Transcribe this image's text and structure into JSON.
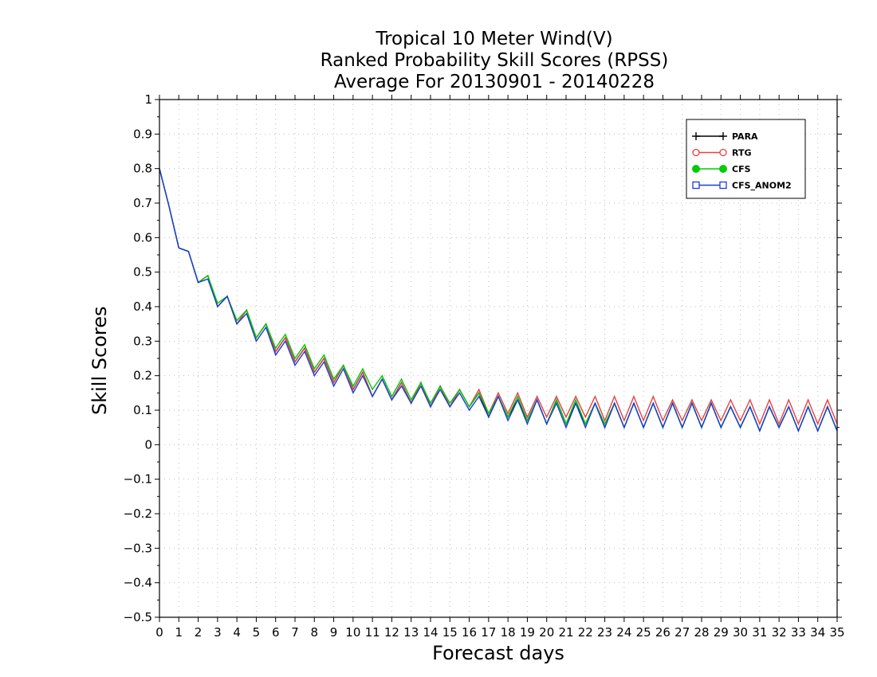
{
  "chart_data": {
    "type": "line",
    "title_lines": [
      "Tropical 10 Meter Wind(V)",
      "Ranked Probability Skill Scores (RPSS)",
      "Average For 20130901 - 20140228"
    ],
    "xlabel": "Forecast days",
    "ylabel": "Skill Scores",
    "xlim": [
      0,
      35
    ],
    "ylim": [
      -0.5,
      1
    ],
    "x_ticks": [
      0,
      1,
      2,
      3,
      4,
      5,
      6,
      7,
      8,
      9,
      10,
      11,
      12,
      13,
      14,
      15,
      16,
      17,
      18,
      19,
      20,
      21,
      22,
      23,
      24,
      25,
      26,
      27,
      28,
      29,
      30,
      31,
      32,
      33,
      34,
      35
    ],
    "y_ticks": [
      -0.5,
      -0.4,
      -0.3,
      -0.2,
      -0.1,
      0,
      0.1,
      0.2,
      0.3,
      0.4,
      0.5,
      0.6,
      0.7,
      0.8,
      0.9,
      1
    ],
    "grid": true,
    "legend_position": "top-right",
    "x_step": 0.5,
    "series": [
      {
        "name": "PARA",
        "color": "#000000",
        "marker": "plus",
        "values": [
          0.8,
          0.69,
          0.57,
          0.56,
          0.47,
          0.49,
          0.4,
          0.43,
          0.35,
          0.39,
          0.31,
          0.35,
          0.27,
          0.31,
          0.24,
          0.28,
          0.21,
          0.25,
          0.18,
          0.23,
          0.16,
          0.21,
          0.14,
          0.19,
          0.13,
          0.18,
          0.12,
          0.18,
          0.11,
          0.17,
          0.11,
          0.16,
          0.11,
          0.15,
          0.08,
          0.14,
          0.08,
          0.13,
          0.07,
          0.13,
          0.06,
          0.13,
          0.06,
          0.12,
          0.06,
          0.12,
          0.05,
          0.12,
          0.05,
          0.12,
          0.05,
          0.12,
          0.05,
          0.12,
          0.05,
          0.12,
          0.05,
          0.12,
          0.05,
          0.11,
          0.05,
          0.11,
          0.04,
          0.11,
          0.05,
          0.11,
          0.04,
          0.11,
          0.04,
          0.11,
          0.04
        ]
      },
      {
        "name": "RTG",
        "color": "#e84040",
        "marker": "circle",
        "values": [
          0.8,
          0.69,
          0.57,
          0.56,
          0.47,
          0.49,
          0.4,
          0.43,
          0.35,
          0.39,
          0.31,
          0.35,
          0.27,
          0.31,
          0.24,
          0.28,
          0.21,
          0.25,
          0.18,
          0.23,
          0.16,
          0.21,
          0.14,
          0.19,
          0.13,
          0.18,
          0.12,
          0.18,
          0.11,
          0.17,
          0.11,
          0.16,
          0.11,
          0.16,
          0.09,
          0.15,
          0.09,
          0.15,
          0.08,
          0.14,
          0.08,
          0.14,
          0.08,
          0.14,
          0.08,
          0.14,
          0.07,
          0.14,
          0.07,
          0.14,
          0.07,
          0.14,
          0.07,
          0.13,
          0.07,
          0.13,
          0.07,
          0.13,
          0.07,
          0.13,
          0.07,
          0.13,
          0.06,
          0.13,
          0.06,
          0.13,
          0.06,
          0.13,
          0.06,
          0.13,
          0.06
        ]
      },
      {
        "name": "CFS",
        "color": "#00cc00",
        "marker": "filled-circle",
        "values": [
          0.8,
          0.69,
          0.57,
          0.56,
          0.47,
          0.49,
          0.41,
          0.43,
          0.36,
          0.39,
          0.31,
          0.35,
          0.28,
          0.32,
          0.25,
          0.29,
          0.22,
          0.26,
          0.19,
          0.23,
          0.17,
          0.22,
          0.16,
          0.2,
          0.14,
          0.19,
          0.13,
          0.18,
          0.12,
          0.17,
          0.12,
          0.16,
          0.11,
          0.15,
          0.09,
          0.14,
          0.08,
          0.14,
          0.07,
          0.13,
          0.06,
          0.13,
          0.06,
          0.13,
          0.06,
          0.12,
          0.06,
          0.12,
          0.05,
          0.12,
          0.05,
          0.12,
          0.05,
          0.12,
          0.05,
          0.12,
          0.05,
          0.12,
          0.05,
          0.11,
          0.05,
          0.11,
          0.04,
          0.11,
          0.05,
          0.11,
          0.04,
          0.11,
          0.04,
          0.11,
          0.04
        ]
      },
      {
        "name": "CFS_ANOM2",
        "color": "#1a3ddb",
        "marker": "square",
        "values": [
          0.8,
          0.69,
          0.57,
          0.56,
          0.47,
          0.48,
          0.4,
          0.43,
          0.35,
          0.38,
          0.3,
          0.34,
          0.26,
          0.3,
          0.23,
          0.27,
          0.2,
          0.24,
          0.17,
          0.22,
          0.15,
          0.2,
          0.14,
          0.19,
          0.13,
          0.17,
          0.12,
          0.17,
          0.11,
          0.16,
          0.11,
          0.15,
          0.1,
          0.14,
          0.08,
          0.14,
          0.07,
          0.13,
          0.06,
          0.13,
          0.06,
          0.12,
          0.05,
          0.12,
          0.05,
          0.12,
          0.05,
          0.12,
          0.05,
          0.12,
          0.05,
          0.12,
          0.05,
          0.12,
          0.05,
          0.12,
          0.05,
          0.12,
          0.05,
          0.11,
          0.05,
          0.11,
          0.04,
          0.11,
          0.05,
          0.11,
          0.04,
          0.11,
          0.04,
          0.11,
          0.04
        ]
      }
    ]
  }
}
